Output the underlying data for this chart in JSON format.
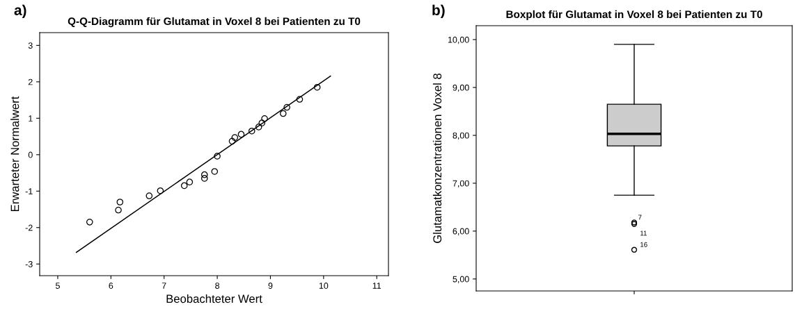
{
  "chart_data": [
    {
      "type": "scatter",
      "title": "Q-Q-Diagramm für Glutamat in Voxel 8 bei Patienten zu T0",
      "xlabel": "Beobachteter Wert",
      "ylabel": "Erwarteter Normalwert",
      "annotations": [
        "a)"
      ],
      "marker": "circle",
      "grid": false,
      "legend": false,
      "xlim": [
        4.66,
        11.22
      ],
      "xticks": [
        5,
        6,
        7,
        8,
        9,
        10,
        11
      ],
      "ylim": [
        -3.32,
        3.35
      ],
      "yticks": [
        -3,
        -2,
        -1,
        0,
        1,
        2,
        3
      ],
      "series": [
        {
          "type": "scatter",
          "color": "#000000",
          "x": [
            5.6,
            6.14,
            6.17,
            6.72,
            6.93,
            7.38,
            7.48,
            7.76,
            7.76,
            7.95,
            8.0,
            8.28,
            8.33,
            8.45,
            8.65,
            8.78,
            8.84,
            8.89,
            9.24,
            9.31,
            9.55,
            9.88
          ],
          "values": [
            -1.85,
            -1.52,
            -1.3,
            -1.13,
            -0.99,
            -0.85,
            -0.75,
            -0.55,
            -0.65,
            -0.46,
            -0.04,
            0.37,
            0.47,
            0.56,
            0.65,
            0.76,
            0.87,
            0.99,
            1.13,
            1.3,
            1.52,
            1.85
          ]
        },
        {
          "type": "line",
          "color": "#000000",
          "x": [
            5.35,
            10.13
          ],
          "values": [
            -2.68,
            2.16
          ],
          "marker": "none",
          "line_style": "solid"
        }
      ]
    },
    {
      "type": "box",
      "title": "Boxplot für Glutamat in Voxel 8 bei Patienten zu T0",
      "ylabel": "Glutamatkonzentrationen Voxel 8",
      "annotations": [
        "b)",
        "7",
        "11",
        "16"
      ],
      "grid": false,
      "legend": false,
      "categories": [
        null
      ],
      "ylim": [
        4.75,
        10.29
      ],
      "yticks": [
        {
          "value": 5,
          "label": "5,00"
        },
        {
          "value": 6,
          "label": "6,00"
        },
        {
          "value": 7,
          "label": "7,00"
        },
        {
          "value": 8,
          "label": "8,00"
        },
        {
          "value": 9,
          "label": "9,00"
        },
        {
          "value": 10,
          "label": "10,00"
        }
      ],
      "series": [
        {
          "color": "#cccccc",
          "boxes": [
            {
              "low": 6.75,
              "q1": 7.78,
              "median": 8.03,
              "q3": 8.65,
              "high": 9.9,
              "outliers": [
                6.18,
                6.15,
                5.61
              ]
            }
          ]
        }
      ]
    }
  ]
}
